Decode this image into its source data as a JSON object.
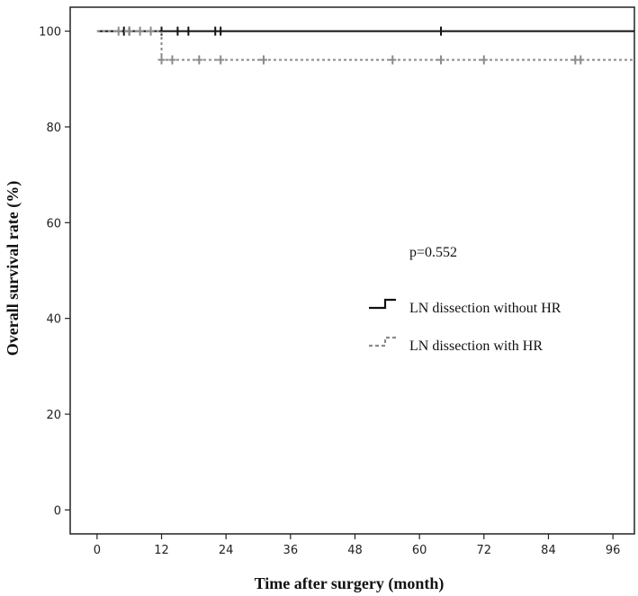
{
  "chart_data": {
    "type": "line",
    "step": true,
    "xlabel": "Time after surgery (month)",
    "ylabel": "Overall survival rate (%)",
    "xlim": [
      -5,
      100
    ],
    "ylim": [
      -5,
      105
    ],
    "xticks": [
      0,
      12,
      24,
      36,
      48,
      60,
      72,
      84,
      96
    ],
    "yticks": [
      0,
      20,
      40,
      60,
      80,
      100
    ],
    "annotation": "p=0.552",
    "legend_position": "right-middle",
    "grid": false,
    "series": [
      {
        "name": "LN dissection without HR",
        "color": "#111111",
        "style": "solid",
        "steps": [
          [
            0,
            100
          ],
          [
            100,
            100
          ]
        ],
        "censored": [
          [
            5,
            100
          ],
          [
            6,
            100
          ],
          [
            12,
            100
          ],
          [
            15,
            100
          ],
          [
            17,
            100
          ],
          [
            22,
            100
          ],
          [
            23,
            100
          ],
          [
            64,
            100
          ]
        ]
      },
      {
        "name": "LN dissection with HR",
        "color": "#8a8a8a",
        "style": "dashed",
        "steps": [
          [
            0,
            100
          ],
          [
            12,
            100
          ],
          [
            12,
            94
          ],
          [
            100,
            94
          ]
        ],
        "censored": [
          [
            4,
            100
          ],
          [
            6,
            100
          ],
          [
            8,
            100
          ],
          [
            10,
            100
          ],
          [
            12,
            94
          ],
          [
            14,
            94
          ],
          [
            19,
            94
          ],
          [
            23,
            94
          ],
          [
            31,
            94
          ],
          [
            55,
            94
          ],
          [
            64,
            94
          ],
          [
            72,
            94
          ],
          [
            89,
            94
          ],
          [
            90,
            94
          ]
        ]
      }
    ]
  }
}
